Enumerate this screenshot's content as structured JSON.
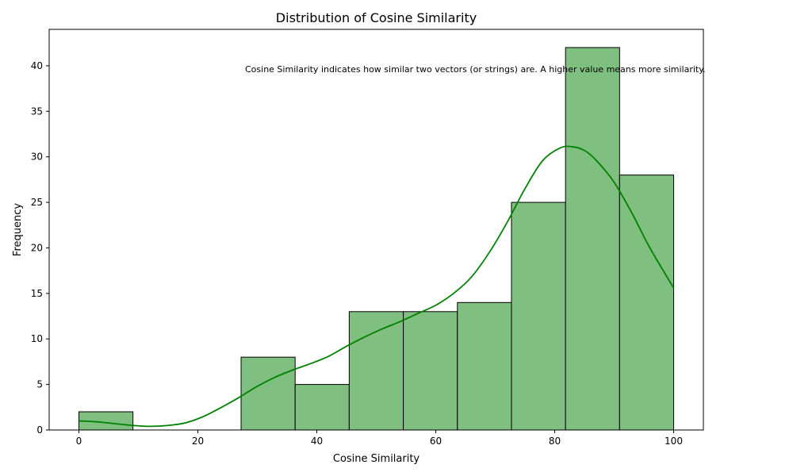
{
  "chart_data": {
    "type": "bar",
    "title": "Distribution of Cosine Similarity",
    "xlabel": "Cosine Similarity",
    "ylabel": "Frequency",
    "annotation": "Cosine Similarity indicates how similar two vectors (or strings) are. A higher value means more similarity.",
    "xlim": [
      -5,
      105
    ],
    "ylim": [
      0,
      44
    ],
    "xticks": [
      0,
      20,
      40,
      60,
      80,
      100
    ],
    "yticks": [
      0,
      5,
      10,
      15,
      20,
      25,
      30,
      35,
      40
    ],
    "bin_edges": [
      0,
      9.09,
      18.18,
      27.27,
      36.36,
      45.45,
      54.55,
      63.64,
      72.73,
      81.82,
      90.91,
      100
    ],
    "values": [
      2,
      0,
      0,
      8,
      5,
      13,
      13,
      14,
      25,
      42,
      28
    ],
    "kde": {
      "x": [
        0,
        3,
        6,
        9,
        12,
        15,
        18,
        21,
        24,
        27,
        30,
        33,
        36,
        39,
        42,
        45,
        48,
        51,
        54,
        57,
        60,
        63,
        66,
        69,
        72,
        75,
        78,
        81,
        83,
        85,
        87,
        90,
        93,
        96,
        100
      ],
      "y": [
        1.0,
        0.9,
        0.7,
        0.5,
        0.4,
        0.5,
        0.8,
        1.5,
        2.5,
        3.6,
        4.8,
        5.8,
        6.6,
        7.3,
        8.1,
        9.2,
        10.2,
        11.1,
        11.9,
        12.8,
        13.7,
        15.0,
        16.8,
        19.5,
        22.8,
        26.5,
        29.6,
        31.0,
        31.1,
        30.7,
        29.6,
        27.2,
        23.8,
        20.0,
        15.6
      ]
    },
    "bar_fill": "#7fbf7f",
    "bar_edge": "#000000",
    "kde_color": "#008000",
    "grid": false,
    "legend": "none"
  }
}
